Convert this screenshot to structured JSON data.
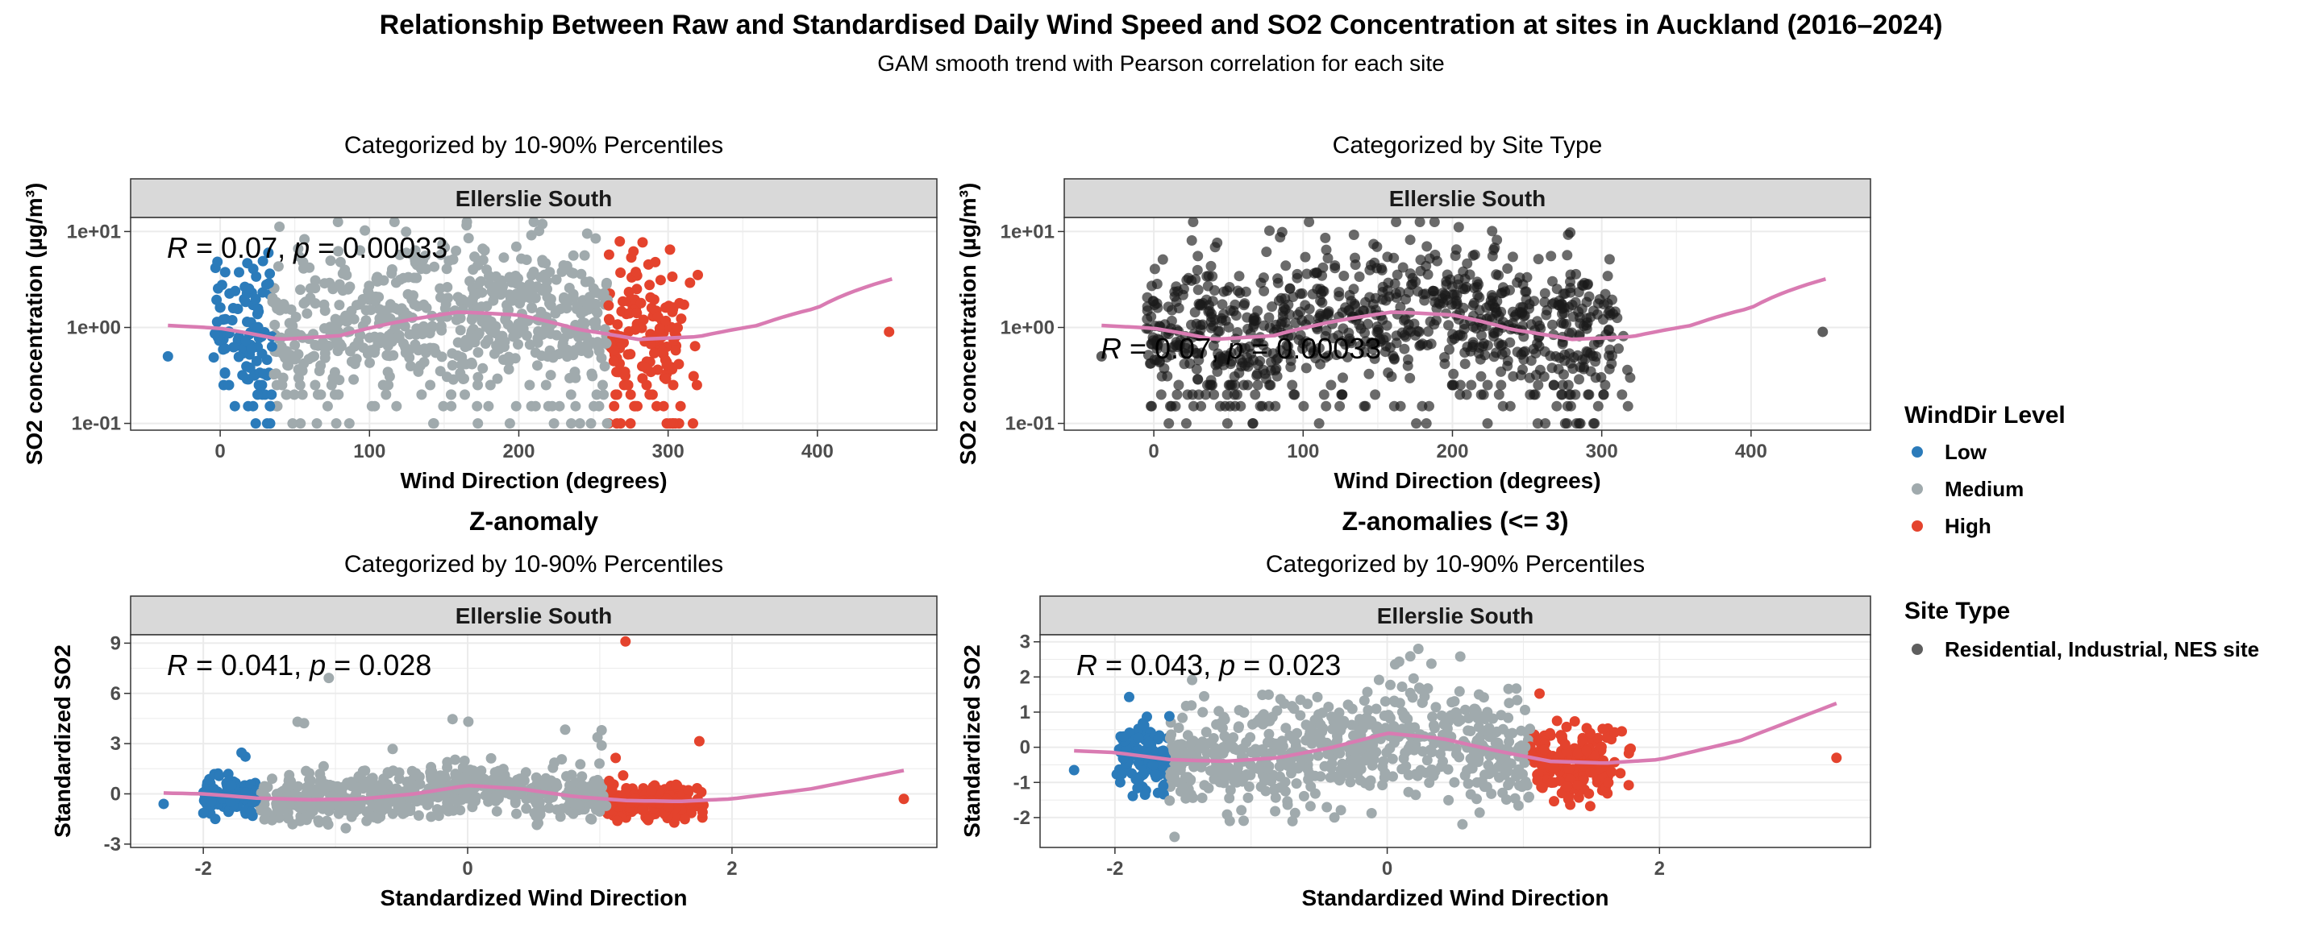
{
  "title": "Relationship Between Raw and Standardised Daily Wind Speed and SO2 Concentration at sites in Auckland (2016–2024)",
  "subtitle": "GAM smooth trend with Pearson correlation for each site",
  "colors": {
    "low": "#2B7BBA",
    "medium": "#A0AAAD",
    "high": "#E4432D",
    "site": "#1a1a1a",
    "smooth": "#D97BB2",
    "strip_bg": "#D9D9D9",
    "grid": "#EBEBEB"
  },
  "legend": {
    "winddir_title": "WindDir Level",
    "winddir_items": [
      {
        "label": "Low",
        "color_key": "low"
      },
      {
        "label": "Medium",
        "color_key": "medium"
      },
      {
        "label": "High",
        "color_key": "high"
      }
    ],
    "sitetype_title": "Site Type",
    "sitetype_items": [
      {
        "label": "Residential, Industrial, NES site",
        "color_key": "site"
      }
    ]
  },
  "chart_data": [
    {
      "type": "scatter",
      "title": "",
      "subtitle": "Categorized by 10-90% Percentiles",
      "facet": "Ellerslie South",
      "xlabel": "Wind Direction (degrees)",
      "ylabel": "SO2  concentration (µg/m³)",
      "yscale": "log10",
      "xlim": [
        -60,
        480
      ],
      "ylim": [
        0.085,
        14
      ],
      "xticks": [
        0,
        100,
        200,
        300,
        400
      ],
      "xtick_labels": [
        "0",
        "100",
        "200",
        "300",
        "400"
      ],
      "yticks": [
        0.1,
        1,
        10
      ],
      "ytick_labels": [
        "1e-01",
        "1e+00",
        "1e+01"
      ],
      "color_mode": "percentile",
      "breaks": [
        35,
        260
      ],
      "x_range": [
        -5,
        320
      ],
      "annotation": {
        "r": "0.07",
        "p": "0.00033"
      },
      "smooth": {
        "x": [
          -35,
          0,
          40,
          80,
          120,
          160,
          200,
          240,
          280,
          320,
          360,
          400,
          450
        ],
        "y": [
          1.05,
          0.98,
          0.75,
          0.82,
          1.15,
          1.45,
          1.35,
          0.95,
          0.75,
          0.8,
          1.05,
          1.6,
          3.2
        ]
      },
      "outliers": [
        {
          "x": -35,
          "y": 0.5,
          "level": "low"
        },
        {
          "x": 448,
          "y": 0.9,
          "level": "high"
        }
      ]
    },
    {
      "type": "scatter",
      "title": "",
      "subtitle": "Categorized by Site Type",
      "facet": "Ellerslie South",
      "xlabel": "Wind Direction (degrees)",
      "ylabel": "SO2  concentration (µg/m³)",
      "yscale": "log10",
      "xlim": [
        -60,
        480
      ],
      "ylim": [
        0.085,
        14
      ],
      "xticks": [
        0,
        100,
        200,
        300,
        400
      ],
      "xtick_labels": [
        "0",
        "100",
        "200",
        "300",
        "400"
      ],
      "yticks": [
        0.1,
        1,
        10
      ],
      "ytick_labels": [
        "1e-01",
        "1e+00",
        "1e+01"
      ],
      "color_mode": "site",
      "breaks": [
        35,
        260
      ],
      "x_range": [
        -5,
        320
      ],
      "annotation": {
        "r": "0.07",
        "p": "0.00033"
      },
      "smooth": {
        "x": [
          -35,
          0,
          40,
          80,
          120,
          160,
          200,
          240,
          280,
          320,
          360,
          400,
          450
        ],
        "y": [
          1.05,
          0.98,
          0.75,
          0.82,
          1.15,
          1.45,
          1.35,
          0.95,
          0.75,
          0.8,
          1.05,
          1.6,
          3.2
        ]
      },
      "outliers": [
        {
          "x": -35,
          "y": 0.5,
          "level": "site"
        },
        {
          "x": 448,
          "y": 0.9,
          "level": "site"
        }
      ]
    },
    {
      "type": "scatter",
      "title": "Z-anomaly",
      "subtitle": "Categorized by 10-90% Percentiles",
      "facet": "Ellerslie South",
      "xlabel": "Standardized Wind Direction",
      "ylabel": "Standardized SO2",
      "yscale": "linear",
      "xlim": [
        -2.55,
        3.55
      ],
      "ylim": [
        -3.2,
        9.5
      ],
      "xticks": [
        -2,
        0,
        2
      ],
      "xtick_labels": [
        "-2",
        "0",
        "2"
      ],
      "yticks": [
        -3,
        0,
        3,
        6,
        9
      ],
      "ytick_labels": [
        "-3",
        "0",
        "3",
        "6",
        "9"
      ],
      "color_mode": "percentile",
      "breaks": [
        -1.6,
        1.05
      ],
      "x_range": [
        -2.0,
        1.8
      ],
      "annotation": {
        "r": "0.041",
        "p": "0.028"
      },
      "smooth": {
        "x": [
          -2.3,
          -2.0,
          -1.6,
          -1.2,
          -0.8,
          -0.4,
          0.0,
          0.4,
          0.8,
          1.2,
          1.6,
          2.0,
          2.6,
          3.3
        ],
        "y": [
          0.05,
          0.0,
          -0.25,
          -0.35,
          -0.3,
          0.0,
          0.5,
          0.3,
          -0.15,
          -0.4,
          -0.45,
          -0.3,
          0.3,
          1.4
        ]
      },
      "outliers": [
        {
          "x": -2.3,
          "y": -0.6,
          "level": "low"
        },
        {
          "x": 3.3,
          "y": -0.3,
          "level": "high"
        }
      ]
    },
    {
      "type": "scatter",
      "title": "Z-anomalies (<= 3)",
      "subtitle": "Categorized by 10-90% Percentiles",
      "facet": "Ellerslie South",
      "xlabel": "Standardized Wind Direction",
      "ylabel": "Standardized SO2",
      "yscale": "linear",
      "xlim": [
        -2.55,
        3.55
      ],
      "ylim": [
        -2.85,
        3.2
      ],
      "xticks": [
        -2,
        0,
        2
      ],
      "xtick_labels": [
        "-2",
        "0",
        "2"
      ],
      "yticks": [
        -2,
        -1,
        0,
        1,
        2,
        3
      ],
      "ytick_labels": [
        "-2",
        "-1",
        "0",
        "1",
        "2",
        "3"
      ],
      "color_mode": "percentile",
      "breaks": [
        -1.6,
        1.05
      ],
      "x_range": [
        -2.0,
        1.8
      ],
      "annotation": {
        "r": "0.043",
        "p": "0.023"
      },
      "smooth": {
        "x": [
          -2.3,
          -2.0,
          -1.6,
          -1.2,
          -0.8,
          -0.4,
          0.0,
          0.4,
          0.8,
          1.2,
          1.6,
          2.0,
          2.6,
          3.3
        ],
        "y": [
          -0.1,
          -0.15,
          -0.35,
          -0.4,
          -0.3,
          0.0,
          0.4,
          0.25,
          -0.1,
          -0.4,
          -0.45,
          -0.35,
          0.2,
          1.25
        ]
      },
      "outliers": [
        {
          "x": -2.3,
          "y": -0.65,
          "level": "low"
        },
        {
          "x": 3.3,
          "y": -0.3,
          "level": "high"
        }
      ]
    }
  ]
}
